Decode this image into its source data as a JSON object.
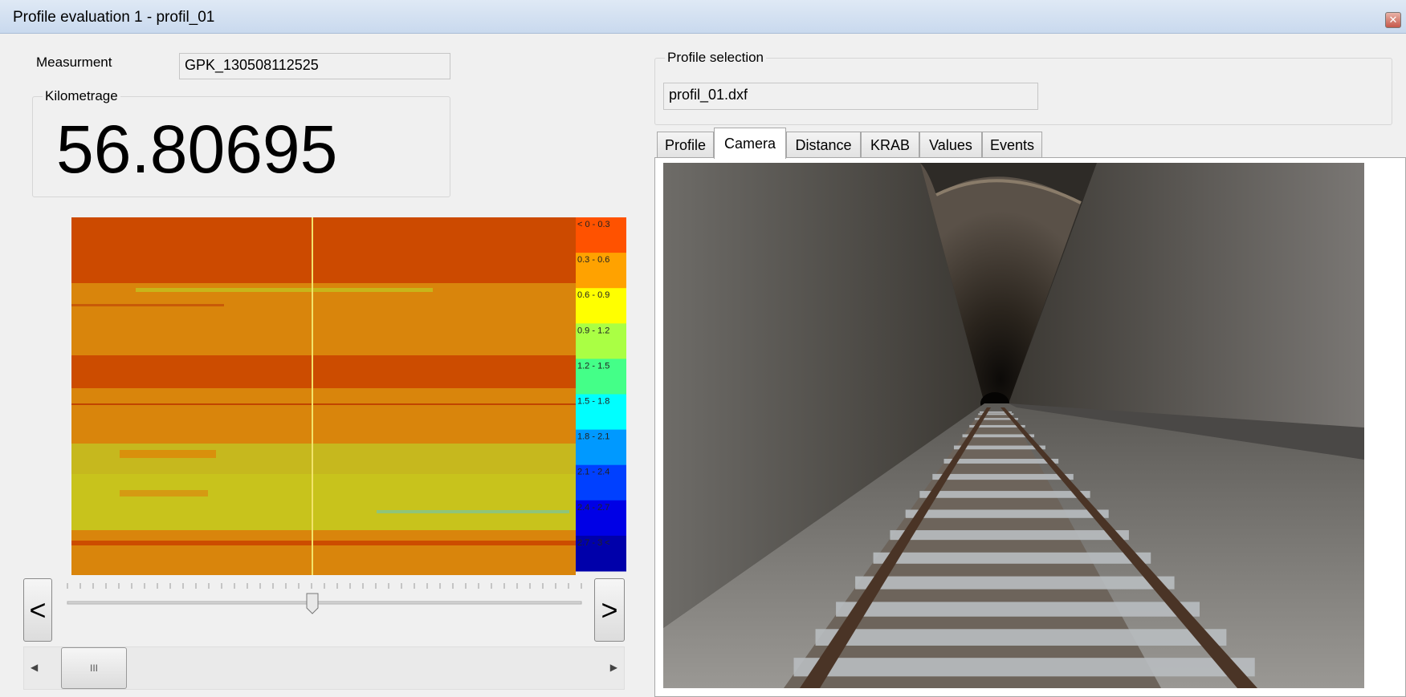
{
  "window": {
    "title": "Profile evaluation 1 - profil_01"
  },
  "measurement": {
    "label": "Measurment",
    "value": "GPK_130508112525"
  },
  "kilometrage": {
    "label": "Kilometrage",
    "value": "56.80695"
  },
  "legend": [
    {
      "label": "< 0 - 0.3",
      "color": "#ff5200"
    },
    {
      "label": "0.3 - 0.6",
      "color": "#ffa200"
    },
    {
      "label": "0.6 - 0.9",
      "color": "#ffff00"
    },
    {
      "label": "0.9 - 1.2",
      "color": "#aaff44"
    },
    {
      "label": "1.2 - 1.5",
      "color": "#44ff88"
    },
    {
      "label": "1.5 - 1.8",
      "color": "#00ffff"
    },
    {
      "label": "1.8 - 2.1",
      "color": "#0099ff"
    },
    {
      "label": "2.1 - 2.4",
      "color": "#0040ff"
    },
    {
      "label": "2.4 - 2.7",
      "color": "#0000e6"
    },
    {
      "label": "2.7 - 3 <",
      "color": "#0000aa"
    }
  ],
  "navigation": {
    "prev": "<",
    "next": ">",
    "scroll_grip": "III"
  },
  "profile_selection": {
    "label": "Profile selection",
    "file": "profil_01.dxf"
  },
  "tabs": {
    "items": [
      "Profile",
      "Camera",
      "Distance",
      "KRAB",
      "Values",
      "Events"
    ],
    "selected": 1
  }
}
